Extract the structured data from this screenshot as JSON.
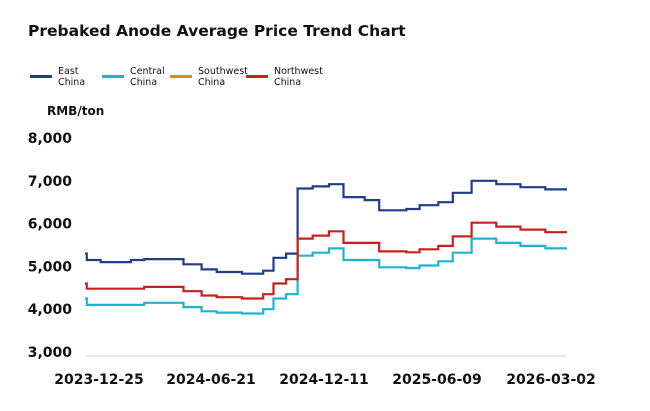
{
  "chart_data": {
    "type": "line",
    "title": "Prebaked Anode Average Price Trend Chart",
    "ylabel": "RMB/ton",
    "xlabel": "",
    "ylim": [
      3000,
      8000
    ],
    "y_ticks": [
      "3,000",
      "4,000",
      "5,000",
      "6,000",
      "7,000",
      "8,000"
    ],
    "x_ticks": [
      "2023-12-25",
      "2024-06-21",
      "2024-12-11",
      "2025-06-09",
      "2026-03-02"
    ],
    "x_range": [
      "2023-12-25",
      "2026-03-02"
    ],
    "grid": false,
    "legend_position": "top-left",
    "step": true,
    "series": [
      {
        "name": "East\nChina",
        "color": "#1f3d8c",
        "points": [
          [
            "2023-12-25",
            5300
          ],
          [
            "2023-12-28",
            5150
          ],
          [
            "2024-01-20",
            5100
          ],
          [
            "2024-03-10",
            5150
          ],
          [
            "2024-04-01",
            5170
          ],
          [
            "2024-06-05",
            5050
          ],
          [
            "2024-07-05",
            4930
          ],
          [
            "2024-07-30",
            4870
          ],
          [
            "2024-09-10",
            4830
          ],
          [
            "2024-10-15",
            4900
          ],
          [
            "2024-11-01",
            5200
          ],
          [
            "2024-11-22",
            5300
          ],
          [
            "2024-12-11",
            6820
          ],
          [
            "2025-01-05",
            6870
          ],
          [
            "2025-02-01",
            6920
          ],
          [
            "2025-02-25",
            6620
          ],
          [
            "2025-04-01",
            6550
          ],
          [
            "2025-04-25",
            6310
          ],
          [
            "2025-06-09",
            6340
          ],
          [
            "2025-07-01",
            6430
          ],
          [
            "2025-08-01",
            6500
          ],
          [
            "2025-08-25",
            6720
          ],
          [
            "2025-09-25",
            7000
          ],
          [
            "2025-11-05",
            6920
          ],
          [
            "2025-12-15",
            6850
          ],
          [
            "2026-01-25",
            6800
          ],
          [
            "2026-03-02",
            6800
          ]
        ]
      },
      {
        "name": "Central\nChina",
        "color": "#1fb2d3",
        "points": [
          [
            "2023-12-25",
            4250
          ],
          [
            "2023-12-28",
            4100
          ],
          [
            "2024-03-10",
            4100
          ],
          [
            "2024-04-01",
            4150
          ],
          [
            "2024-06-05",
            4050
          ],
          [
            "2024-07-05",
            3950
          ],
          [
            "2024-07-30",
            3920
          ],
          [
            "2024-09-10",
            3900
          ],
          [
            "2024-10-15",
            4000
          ],
          [
            "2024-11-01",
            4250
          ],
          [
            "2024-11-22",
            4350
          ],
          [
            "2024-12-11",
            5250
          ],
          [
            "2025-01-05",
            5320
          ],
          [
            "2025-02-01",
            5420
          ],
          [
            "2025-02-25",
            5150
          ],
          [
            "2025-04-25",
            4980
          ],
          [
            "2025-06-09",
            4960
          ],
          [
            "2025-07-01",
            5020
          ],
          [
            "2025-08-01",
            5120
          ],
          [
            "2025-08-25",
            5320
          ],
          [
            "2025-09-25",
            5650
          ],
          [
            "2025-11-05",
            5550
          ],
          [
            "2025-12-15",
            5480
          ],
          [
            "2026-01-25",
            5420
          ],
          [
            "2026-03-02",
            5420
          ]
        ]
      },
      {
        "name": "Southwest\nChina",
        "color": "#d98a1c",
        "points": []
      },
      {
        "name": "Northwest\nChina",
        "color": "#c8201f",
        "points": [
          [
            "2023-12-25",
            4600
          ],
          [
            "2023-12-28",
            4480
          ],
          [
            "2024-03-10",
            4480
          ],
          [
            "2024-04-01",
            4520
          ],
          [
            "2024-06-05",
            4420
          ],
          [
            "2024-07-05",
            4320
          ],
          [
            "2024-07-30",
            4280
          ],
          [
            "2024-09-10",
            4250
          ],
          [
            "2024-10-15",
            4350
          ],
          [
            "2024-11-01",
            4600
          ],
          [
            "2024-11-22",
            4700
          ],
          [
            "2024-12-11",
            5650
          ],
          [
            "2025-01-05",
            5720
          ],
          [
            "2025-02-01",
            5820
          ],
          [
            "2025-02-25",
            5550
          ],
          [
            "2025-04-25",
            5350
          ],
          [
            "2025-06-09",
            5330
          ],
          [
            "2025-07-01",
            5400
          ],
          [
            "2025-08-01",
            5480
          ],
          [
            "2025-08-25",
            5700
          ],
          [
            "2025-09-25",
            6020
          ],
          [
            "2025-11-05",
            5930
          ],
          [
            "2025-12-15",
            5860
          ],
          [
            "2026-01-25",
            5800
          ],
          [
            "2026-03-02",
            5800
          ]
        ]
      }
    ]
  }
}
